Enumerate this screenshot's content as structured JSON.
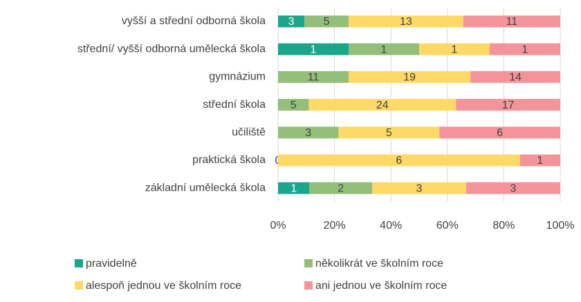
{
  "chart_data": {
    "type": "bar",
    "orientation": "horizontal",
    "stacking": "percent",
    "categories": [
      "vyšší a střední odborná škola",
      "střední/ vyšší odborná umělecká škola",
      "gymnázium",
      "střední škola",
      "učiliště",
      "praktická škola",
      "základní umělecká škola"
    ],
    "series": [
      {
        "name": "pravidelně",
        "color": "#1aa68a",
        "values": [
          3,
          1,
          0,
          0,
          0,
          0,
          1
        ]
      },
      {
        "name": "několikrát ve školním roce",
        "color": "#93bf7a",
        "values": [
          5,
          1,
          11,
          5,
          3,
          0,
          2
        ]
      },
      {
        "name": "alespoň jednou ve školním roce",
        "color": "#ffd966",
        "values": [
          13,
          1,
          19,
          24,
          5,
          6,
          3
        ]
      },
      {
        "name": "ani jednou ve školním roce",
        "color": "#f4949a",
        "values": [
          11,
          1,
          14,
          17,
          6,
          1,
          3
        ]
      }
    ],
    "xlim": [
      0,
      100
    ],
    "xticks": [
      {
        "value": 0,
        "label": "0%"
      },
      {
        "value": 20,
        "label": "20%"
      },
      {
        "value": 40,
        "label": "40%"
      },
      {
        "value": 60,
        "label": "60%"
      },
      {
        "value": 80,
        "label": "80%"
      },
      {
        "value": 100,
        "label": "100%"
      }
    ],
    "grid": true,
    "legend": "bottom"
  }
}
